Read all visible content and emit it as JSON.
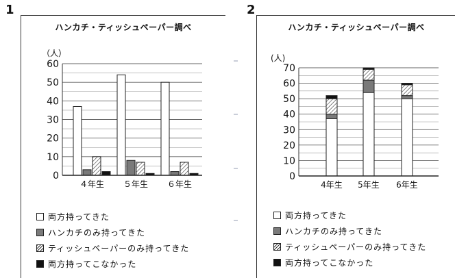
{
  "panels": [
    {
      "number": "1",
      "title": "ハンカチ・ティッシュペーパー調べ",
      "unit": "（人）"
    },
    {
      "number": "2",
      "title": "ハンカチ・ティッシュペーパー調べ",
      "unit": "(人)"
    }
  ],
  "legend": [
    {
      "label": "両方持ってきた",
      "color": "#ffffff",
      "pattern": "none"
    },
    {
      "label": "ハンカチのみ持ってきた",
      "color": "#7a7a7a",
      "pattern": "none"
    },
    {
      "label": "ティッシュペーパーのみ持ってきた",
      "color": "#ffffff",
      "pattern": "diagonal-hatch"
    },
    {
      "label": "両方持ってこなかった",
      "color": "#111111",
      "pattern": "none"
    }
  ],
  "chart_data": [
    {
      "type": "bar",
      "title": "ハンカチ・ティッシュペーパー調べ",
      "ylabel": "（人）",
      "categories": [
        "４年生",
        "５年生",
        "６年生"
      ],
      "series": [
        {
          "name": "両方持ってきた",
          "values": [
            37,
            54,
            50
          ]
        },
        {
          "name": "ハンカチのみ持ってきた",
          "values": [
            3,
            8,
            2
          ]
        },
        {
          "name": "ティッシュペーパーのみ持ってきた",
          "values": [
            10,
            7,
            7
          ]
        },
        {
          "name": "両方持ってこなかった",
          "values": [
            2,
            1,
            1
          ]
        }
      ],
      "ylim": [
        0,
        60
      ],
      "yticks": [
        0,
        10,
        20,
        30,
        40,
        50,
        60
      ],
      "grid": true,
      "stacked": false
    },
    {
      "type": "bar",
      "title": "ハンカチ・ティッシュペーパー調べ",
      "ylabel": "(人)",
      "categories": [
        "4年生",
        "5年生",
        "6年生"
      ],
      "series": [
        {
          "name": "両方持ってきた",
          "values": [
            37,
            54,
            50
          ]
        },
        {
          "name": "ハンカチのみ持ってきた",
          "values": [
            3,
            8,
            2
          ]
        },
        {
          "name": "ティッシュペーパーのみ持ってきた",
          "values": [
            10,
            7,
            7
          ]
        },
        {
          "name": "両方持ってこなかった",
          "values": [
            2,
            1,
            1
          ]
        }
      ],
      "ylim": [
        0,
        70
      ],
      "yticks": [
        0,
        10,
        20,
        30,
        40,
        50,
        60,
        70
      ],
      "grid": true,
      "stacked": true
    }
  ]
}
